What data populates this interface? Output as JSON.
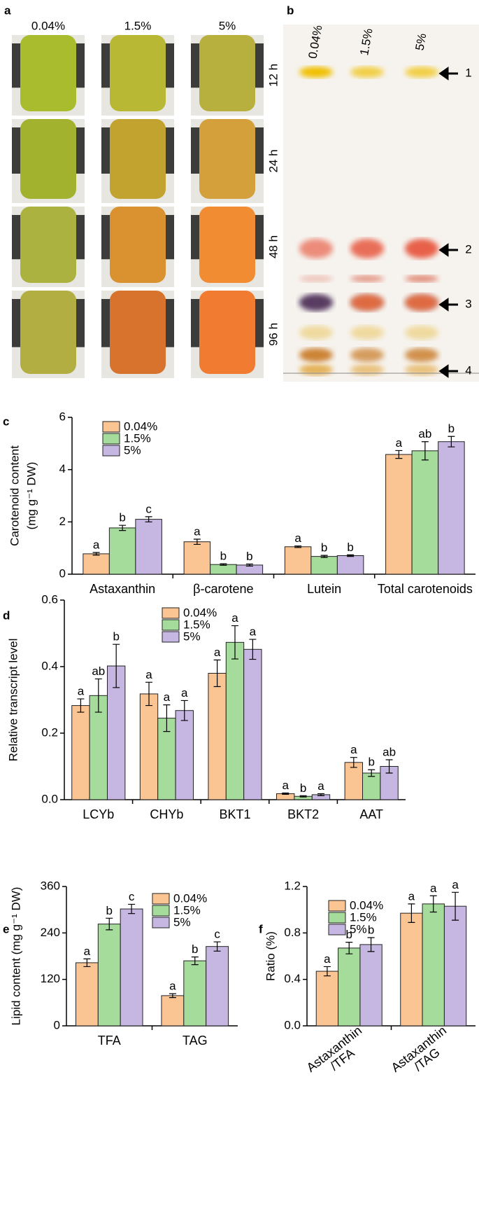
{
  "panel_a": {
    "label": "a",
    "concentrations": [
      "0.04%",
      "1.5%",
      "5%"
    ],
    "times": [
      "12 h",
      "24 h",
      "48 h",
      "96 h"
    ]
  },
  "panel_b": {
    "label": "b",
    "lanes": [
      "0.04%",
      "1.5%",
      "5%"
    ],
    "bands": [
      "1",
      "2",
      "3",
      "4"
    ]
  },
  "chart_data": [
    {
      "type": "bar",
      "panel_label": "c",
      "y_label": [
        "Carotenoid content",
        "(mg g⁻¹ DW)"
      ],
      "categories": [
        "Astaxanthin",
        "β-carotene",
        "Lutein",
        "Total carotenoids"
      ],
      "ylim": [
        0,
        6
      ],
      "yticks": [
        0,
        2,
        4,
        6
      ],
      "series": [
        {
          "name": "0.04%",
          "color": "#fbc493",
          "values": [
            0.78,
            1.24,
            1.05,
            4.58
          ],
          "errors": [
            0.05,
            0.1,
            0.03,
            0.15
          ],
          "letters": [
            "a",
            "a",
            "a",
            "a"
          ]
        },
        {
          "name": "1.5%",
          "color": "#a5dc9c",
          "values": [
            1.77,
            0.37,
            0.68,
            4.72
          ],
          "errors": [
            0.1,
            0.03,
            0.04,
            0.35
          ],
          "letters": [
            "b",
            "b",
            "b",
            "ab"
          ]
        },
        {
          "name": "5%",
          "color": "#c6b6e2",
          "values": [
            2.1,
            0.35,
            0.71,
            5.07
          ],
          "errors": [
            0.1,
            0.04,
            0.03,
            0.2
          ],
          "letters": [
            "c",
            "b",
            "b",
            "b"
          ]
        }
      ]
    },
    {
      "type": "bar",
      "panel_label": "d",
      "y_label": [
        "Relative transcript level"
      ],
      "categories": [
        "LCYb",
        "CHYb",
        "BKT1",
        "BKT2",
        "AAT"
      ],
      "ylim": [
        0,
        0.6
      ],
      "yticks": [
        {
          "value": 0,
          "label": "0.0"
        },
        0.2,
        0.4,
        0.6
      ],
      "series": [
        {
          "name": "0.04%",
          "color": "#fbc493",
          "values": [
            0.283,
            0.318,
            0.38,
            0.018,
            0.112
          ],
          "errors": [
            0.02,
            0.035,
            0.04,
            0.002,
            0.015
          ],
          "letters": [
            "a",
            "a",
            "a",
            "a",
            "a"
          ]
        },
        {
          "name": "1.5%",
          "color": "#a5dc9c",
          "values": [
            0.313,
            0.245,
            0.473,
            0.01,
            0.08
          ],
          "errors": [
            0.05,
            0.04,
            0.05,
            0.002,
            0.01
          ],
          "letters": [
            "ab",
            "a",
            "a",
            "b",
            "b"
          ]
        },
        {
          "name": "5%",
          "color": "#c6b6e2",
          "values": [
            0.402,
            0.268,
            0.452,
            0.015,
            0.1
          ],
          "errors": [
            0.065,
            0.03,
            0.03,
            0.003,
            0.02
          ],
          "letters": [
            "b",
            "a",
            "a",
            "a",
            "ab"
          ]
        }
      ]
    },
    {
      "type": "bar",
      "panel_label": "e",
      "y_label": [
        "Lipid content (mg g⁻¹ DW)"
      ],
      "categories": [
        "TFA",
        "TAG"
      ],
      "ylim": [
        0,
        360
      ],
      "yticks": [
        0,
        120,
        240,
        360
      ],
      "series": [
        {
          "name": "0.04%",
          "color": "#fbc493",
          "values": [
            163,
            78
          ],
          "errors": [
            10,
            5
          ],
          "letters": [
            "a",
            "a"
          ]
        },
        {
          "name": "1.5%",
          "color": "#a5dc9c",
          "values": [
            263,
            168
          ],
          "errors": [
            15,
            10
          ],
          "letters": [
            "b",
            "b"
          ]
        },
        {
          "name": "5%",
          "color": "#c6b6e2",
          "values": [
            302,
            205
          ],
          "errors": [
            12,
            12
          ],
          "letters": [
            "c",
            "c"
          ]
        }
      ]
    },
    {
      "type": "bar",
      "panel_label": "f",
      "y_label": [
        "Ratio (%)"
      ],
      "categories": [
        "Astaxanthin /TFA",
        "Astaxanthin /TAG"
      ],
      "ylim": [
        0,
        1.2
      ],
      "yticks": [
        {
          "value": 0,
          "label": "0.0"
        },
        0.4,
        0.8,
        1.2
      ],
      "series": [
        {
          "name": "0.04%",
          "color": "#fbc493",
          "values": [
            0.47,
            0.97
          ],
          "errors": [
            0.04,
            0.08
          ],
          "letters": [
            "a",
            "a"
          ]
        },
        {
          "name": "1.5%",
          "color": "#a5dc9c",
          "values": [
            0.67,
            1.05
          ],
          "errors": [
            0.05,
            0.07
          ],
          "letters": [
            "b",
            "a"
          ]
        },
        {
          "name": "5%",
          "color": "#c6b6e2",
          "values": [
            0.7,
            1.03
          ],
          "errors": [
            0.06,
            0.12
          ],
          "letters": [
            "b",
            "a"
          ]
        }
      ]
    }
  ]
}
